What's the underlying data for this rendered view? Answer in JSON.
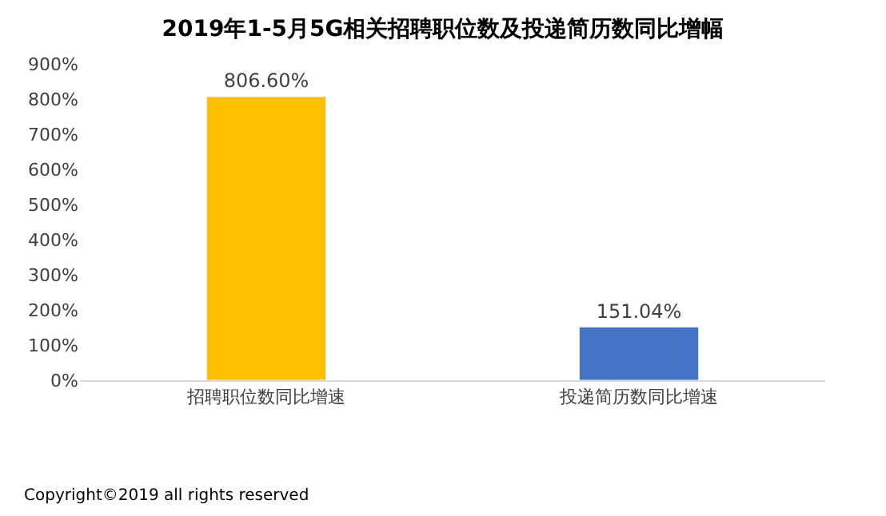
{
  "chart_data": {
    "type": "bar",
    "title": "2019年1-5月5G相关招聘职位数及投递简历数同比增幅",
    "categories": [
      "招聘职位数同比增速",
      "投递简历数同比增速"
    ],
    "values": [
      806.6,
      151.04
    ],
    "colors": [
      "#ffc000",
      "#4472c4"
    ],
    "value_labels": [
      "806.60%",
      "151.04%"
    ],
    "ylim": [
      0,
      900
    ],
    "yticks": [
      {
        "value": 0,
        "label": "0%"
      },
      {
        "value": 100,
        "label": "100%"
      },
      {
        "value": 200,
        "label": "200%"
      },
      {
        "value": 300,
        "label": "300%"
      },
      {
        "value": 400,
        "label": "400%"
      },
      {
        "value": 500,
        "label": "500%"
      },
      {
        "value": 600,
        "label": "600%"
      },
      {
        "value": 700,
        "label": "700%"
      },
      {
        "value": 800,
        "label": "800%"
      },
      {
        "value": 900,
        "label": "900%"
      }
    ],
    "annotations": [
      "Copyright©2019 all rights reserved"
    ]
  }
}
